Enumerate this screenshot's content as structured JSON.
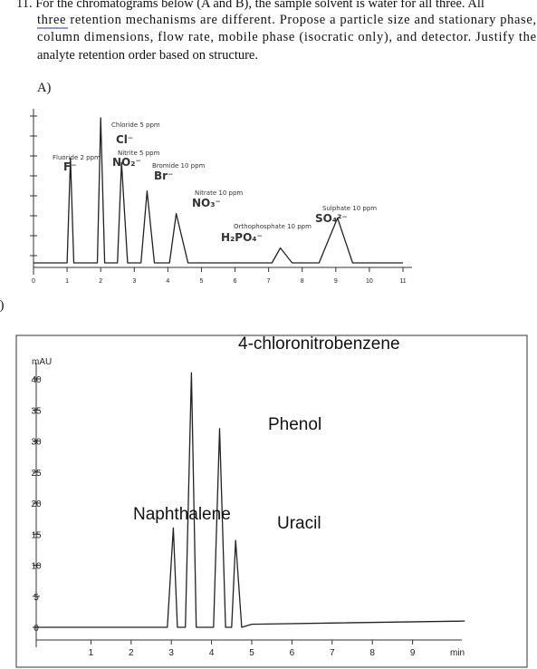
{
  "question": {
    "lines": [
      "11. For the chromatograms below (A and B), the sample solvent is water for all three. All",
      "three retention mechanisms are different. Propose a particle size and stationary phase,",
      "column dimensions, flow rate, mobile phase (isocratic only), and detector.  Justify the",
      "analyte retention order based on structure."
    ]
  },
  "panels": [
    "A)",
    "B)"
  ],
  "chart_data": [
    {
      "type": "line",
      "color": "#222222",
      "x": [
        0,
        1.0,
        1.1,
        1.2,
        1.9,
        2.0,
        2.12,
        2.5,
        2.62,
        2.8,
        3.2,
        3.38,
        3.6,
        4.05,
        4.25,
        4.6,
        5,
        7.1,
        7.35,
        7.7,
        8.5,
        9.05,
        9.5,
        11
      ],
      "values": [
        0,
        0,
        70,
        0,
        0,
        97,
        0,
        0,
        67,
        0,
        0,
        48,
        0,
        0,
        33,
        0,
        0,
        0,
        10,
        0,
        0,
        30,
        0,
        0
      ],
      "xlim": [
        0,
        11
      ],
      "ylim": [
        0,
        100
      ],
      "xticks": [
        0,
        1,
        2,
        3,
        4,
        5,
        6,
        7,
        8,
        9,
        10,
        11
      ],
      "annotations": [
        {
          "text": "Fluoride 2 ppm",
          "ion": "F⁻"
        },
        {
          "text": "Chloride 5 ppm",
          "ion": "Cl⁻"
        },
        {
          "text": "Nitrite 5 ppm",
          "ion": "NO₂⁻"
        },
        {
          "text": "Bromide 10 ppm",
          "ion": "Br⁻"
        },
        {
          "text": "Nitrate 10 ppm",
          "ion": "NO₃⁻"
        },
        {
          "text": "Orthophosphate 10 ppm",
          "ion": "H₂PO₄⁻"
        },
        {
          "text": "Sulphate 10 ppm",
          "ion": "SO₄²⁻"
        }
      ]
    },
    {
      "type": "line",
      "color": "#222222",
      "ylabel": "mAU",
      "xlabel": "min",
      "x": [
        -0.4,
        2.9,
        3.05,
        3.15,
        3.35,
        3.5,
        3.62,
        4.05,
        4.2,
        4.35,
        4.5,
        4.6,
        4.75,
        5,
        10.3
      ],
      "values": [
        0,
        0,
        16,
        0,
        0,
        41,
        0,
        0,
        32,
        0,
        0,
        14,
        0,
        0.5,
        1
      ],
      "xlim": [
        0,
        10
      ],
      "ylim": [
        0,
        40
      ],
      "xticks": [
        1,
        2,
        3,
        4,
        5,
        6,
        7,
        8,
        9
      ],
      "yticks": [
        0,
        5,
        10,
        15,
        20,
        25,
        30,
        35,
        40
      ],
      "annotations": [
        {
          "text": "4-chloronitrobenzene"
        },
        {
          "text": "Phenol"
        },
        {
          "text": "Naphthalene"
        },
        {
          "text": "Uracil"
        }
      ]
    }
  ]
}
